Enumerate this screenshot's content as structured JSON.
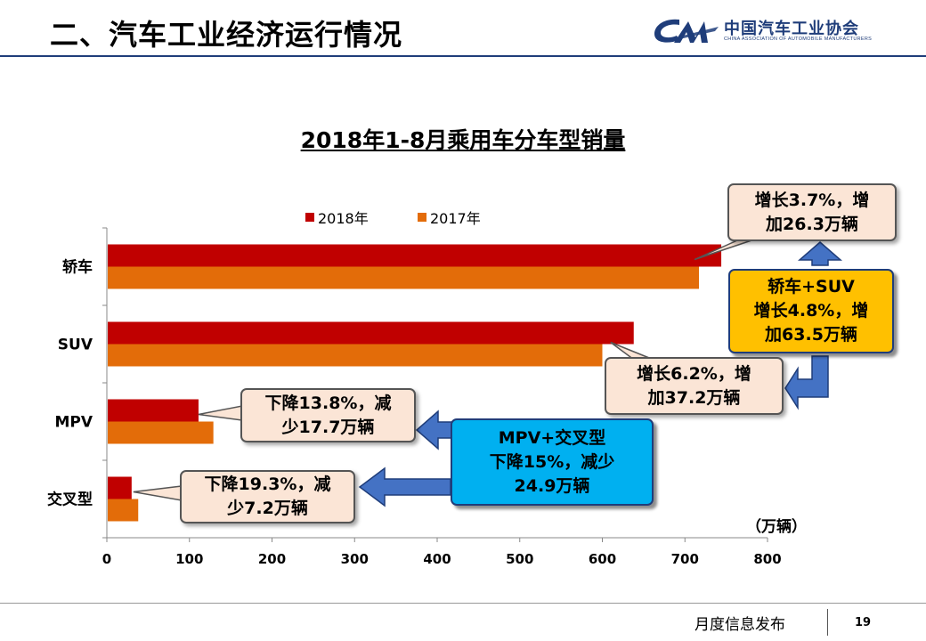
{
  "header": {
    "title": "二、汽车工业经济运行情况",
    "logo_cn": "中国汽车工业协会",
    "logo_en": "CHINA ASSOCIATION OF AUTOMOBILE MANUFACTURERS"
  },
  "chart_data": {
    "type": "bar",
    "orientation": "horizontal",
    "title": "2018年1-8月乘用车分车型销量",
    "categories": [
      "轿车",
      "SUV",
      "MPV",
      "交叉型"
    ],
    "series": [
      {
        "name": "2018年",
        "values": [
          744,
          638,
          111,
          30
        ],
        "color": "#c00000"
      },
      {
        "name": "2017年",
        "values": [
          717,
          600,
          129,
          38
        ],
        "color": "#e36c09"
      }
    ],
    "x_ticks": [
      "0",
      "100",
      "200",
      "300",
      "400",
      "500",
      "600",
      "700",
      "800"
    ],
    "xlim": [
      0,
      800
    ],
    "unit": "（万辆）",
    "legend_position": "top",
    "grid": false,
    "annotations": {
      "sedan": [
        "增长3.7%，增",
        "加26.3万辆"
      ],
      "sedan_suv": [
        "轿车+SUV",
        "增长4.8%，增",
        "加63.5万辆"
      ],
      "suv": [
        "增长6.2%，增",
        "加37.2万辆"
      ],
      "mpv": [
        "下降13.8%，减",
        "少17.7万辆"
      ],
      "mpv_cross": [
        "MPV+交叉型",
        "下降15%，减少",
        "24.9万辆"
      ],
      "cross": [
        "下降19.3%，减",
        "少7.2万辆"
      ]
    }
  },
  "footer": {
    "text": "月度信息发布",
    "page": "19"
  }
}
